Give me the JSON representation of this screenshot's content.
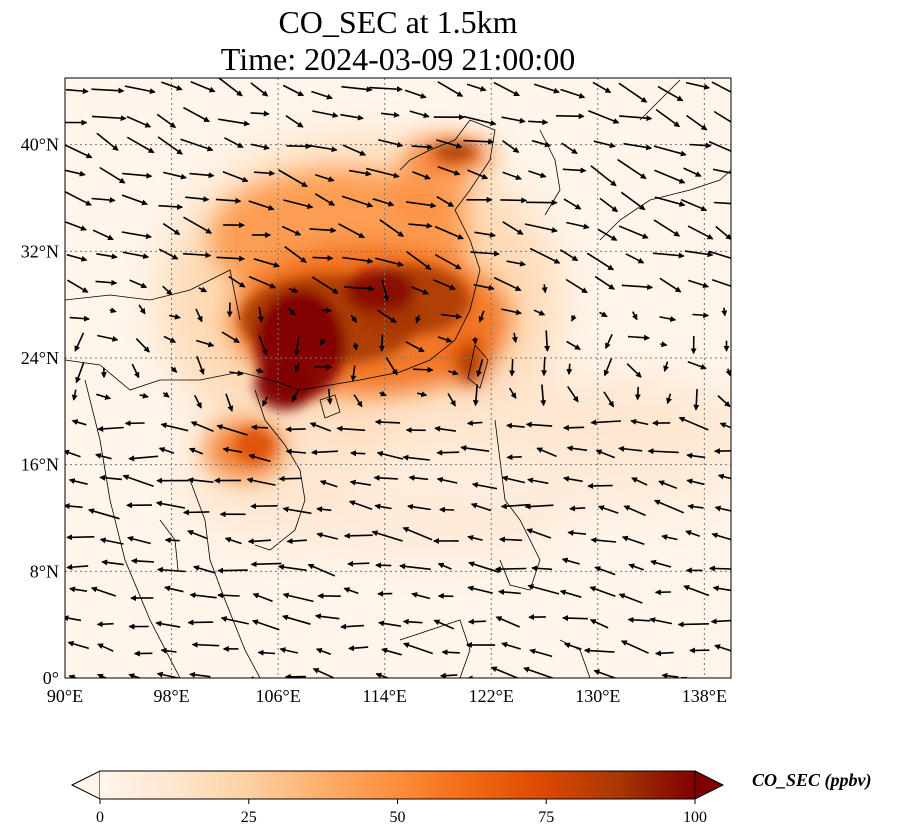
{
  "title": {
    "line1": "CO_SEC at 1.5km",
    "line2": "Time: 2024-03-09 21:00:00"
  },
  "map": {
    "variable": "CO_SEC",
    "level": "1.5km",
    "lon_range": [
      90,
      140
    ],
    "lat_range": [
      0,
      45
    ],
    "x_ticks": [
      "90°E",
      "98°E",
      "106°E",
      "114°E",
      "122°E",
      "130°E",
      "138°E"
    ],
    "y_ticks": [
      "0°",
      "8°N",
      "16°N",
      "24°N",
      "32°N",
      "40°N"
    ],
    "gridlines": true,
    "background_color": "#fff5eb",
    "coastline_color": "#000000",
    "wind_vectors": true
  },
  "colorbar": {
    "label": "CO_SEC (ppbv)",
    "ticks": [
      "0",
      "25",
      "50",
      "75",
      "100"
    ],
    "range": [
      0,
      100
    ],
    "colors": [
      "#fff5eb",
      "#fee6ce",
      "#fdd0a2",
      "#fdae6b",
      "#fd8d3c",
      "#f16913",
      "#d94801",
      "#a63603",
      "#7f0000"
    ],
    "extend": "both"
  }
}
